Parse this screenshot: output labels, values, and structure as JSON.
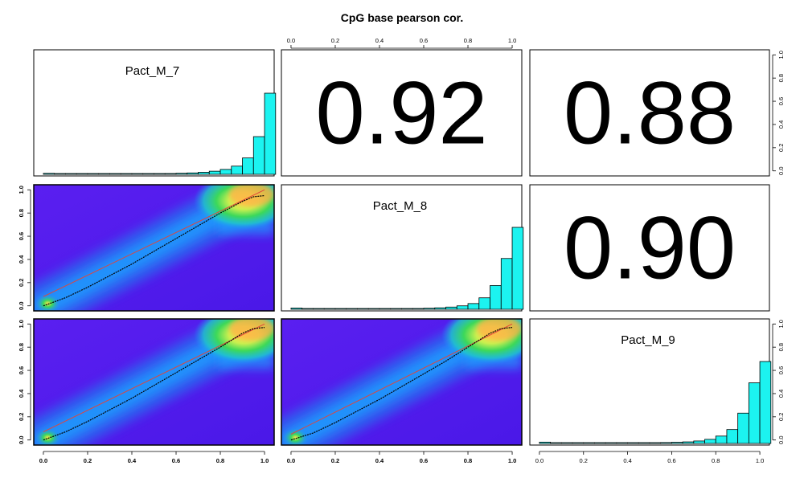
{
  "title": "CpG base pearson cor.",
  "colors": {
    "hist_fill": "#1cf3f0",
    "panel_border": "#000000",
    "smooth_line": "#000000",
    "identity_line": "#e0463c"
  },
  "axis_ticks": [
    "0.0",
    "0.2",
    "0.4",
    "0.6",
    "0.8",
    "1.0"
  ],
  "chart_data": {
    "type": "pairs-matrix",
    "variables": [
      "Pact_M_7",
      "Pact_M_8",
      "Pact_M_9"
    ],
    "correlations": [
      {
        "row": 1,
        "col": 2,
        "label": "0.92",
        "value": 0.92
      },
      {
        "row": 1,
        "col": 3,
        "label": "0.88",
        "value": 0.88
      },
      {
        "row": 2,
        "col": 3,
        "label": "0.90",
        "value": 0.9
      }
    ],
    "histograms": [
      {
        "variable": "Pact_M_7",
        "type": "bar",
        "bins": [
          0,
          0.05,
          0.1,
          0.15,
          0.2,
          0.25,
          0.3,
          0.35,
          0.4,
          0.45,
          0.5,
          0.55,
          0.6,
          0.65,
          0.7,
          0.75,
          0.8,
          0.85,
          0.9,
          0.95,
          1.0
        ],
        "values": [
          0.012,
          0.004,
          0.003,
          0.003,
          0.003,
          0.003,
          0.003,
          0.004,
          0.005,
          0.006,
          0.008,
          0.01,
          0.013,
          0.017,
          0.025,
          0.038,
          0.06,
          0.1,
          0.2,
          0.46,
          0.99
        ]
      },
      {
        "variable": "Pact_M_8",
        "type": "bar",
        "bins": [
          0,
          0.05,
          0.1,
          0.15,
          0.2,
          0.25,
          0.3,
          0.35,
          0.4,
          0.45,
          0.5,
          0.55,
          0.6,
          0.65,
          0.7,
          0.75,
          0.8,
          0.85,
          0.9,
          0.95,
          1.0
        ],
        "values": [
          0.015,
          0.004,
          0.003,
          0.003,
          0.003,
          0.003,
          0.003,
          0.004,
          0.005,
          0.006,
          0.008,
          0.01,
          0.013,
          0.018,
          0.027,
          0.042,
          0.07,
          0.14,
          0.29,
          0.62,
          1.0
        ]
      },
      {
        "variable": "Pact_M_9",
        "type": "bar",
        "bins": [
          0,
          0.05,
          0.1,
          0.15,
          0.2,
          0.25,
          0.3,
          0.35,
          0.4,
          0.45,
          0.5,
          0.55,
          0.6,
          0.65,
          0.7,
          0.75,
          0.8,
          0.85,
          0.9,
          0.95,
          1.0
        ],
        "values": [
          0.016,
          0.005,
          0.004,
          0.003,
          0.003,
          0.003,
          0.003,
          0.004,
          0.005,
          0.007,
          0.009,
          0.011,
          0.014,
          0.019,
          0.03,
          0.05,
          0.09,
          0.17,
          0.37,
          0.74,
          1.0
        ]
      }
    ],
    "scatter_panels": [
      {
        "row": 2,
        "col": 1,
        "type": "density-scatter",
        "x": "Pact_M_7",
        "y": "Pact_M_8",
        "smooth_line": [
          [
            0.0,
            0.0
          ],
          [
            0.1,
            0.07
          ],
          [
            0.2,
            0.16
          ],
          [
            0.3,
            0.26
          ],
          [
            0.4,
            0.36
          ],
          [
            0.5,
            0.47
          ],
          [
            0.6,
            0.58
          ],
          [
            0.7,
            0.69
          ],
          [
            0.8,
            0.8
          ],
          [
            0.9,
            0.9
          ],
          [
            0.95,
            0.94
          ],
          [
            1.0,
            0.95
          ]
        ],
        "identity_line": [
          [
            0,
            0.08
          ],
          [
            1,
            1.0
          ]
        ]
      },
      {
        "row": 3,
        "col": 1,
        "type": "density-scatter",
        "x": "Pact_M_7",
        "y": "Pact_M_9",
        "smooth_line": [
          [
            0.0,
            0.0
          ],
          [
            0.1,
            0.07
          ],
          [
            0.2,
            0.16
          ],
          [
            0.3,
            0.26
          ],
          [
            0.4,
            0.36
          ],
          [
            0.5,
            0.47
          ],
          [
            0.6,
            0.58
          ],
          [
            0.7,
            0.69
          ],
          [
            0.8,
            0.8
          ],
          [
            0.9,
            0.92
          ],
          [
            0.95,
            0.96
          ],
          [
            1.0,
            0.97
          ]
        ],
        "identity_line": [
          [
            0,
            0.07
          ],
          [
            1,
            1.0
          ]
        ]
      },
      {
        "row": 3,
        "col": 2,
        "type": "density-scatter",
        "x": "Pact_M_8",
        "y": "Pact_M_9",
        "smooth_line": [
          [
            0.0,
            0.0
          ],
          [
            0.1,
            0.06
          ],
          [
            0.2,
            0.15
          ],
          [
            0.3,
            0.25
          ],
          [
            0.4,
            0.35
          ],
          [
            0.5,
            0.46
          ],
          [
            0.6,
            0.57
          ],
          [
            0.7,
            0.68
          ],
          [
            0.8,
            0.8
          ],
          [
            0.9,
            0.92
          ],
          [
            0.95,
            0.96
          ],
          [
            1.0,
            0.97
          ]
        ],
        "identity_line": [
          [
            0,
            0.05
          ],
          [
            1,
            1.0
          ]
        ]
      }
    ],
    "xlim": [
      0,
      1
    ],
    "ylim": [
      0,
      1
    ]
  }
}
